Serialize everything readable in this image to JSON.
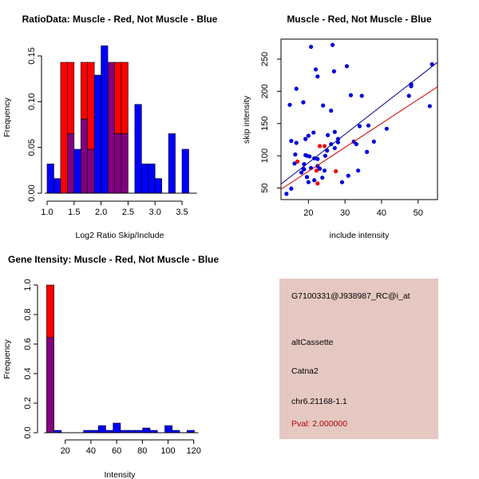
{
  "chart_data": [
    {
      "type": "bar",
      "subtype": "overlaid-histogram",
      "title": "RatioData: Muscle - Red, Not Muscle - Blue",
      "xlabel": "Log2 Ratio Skip/Include",
      "ylabel": "Frequency",
      "xlim": [
        1.0,
        3.7
      ],
      "ylim": [
        0,
        0.16
      ],
      "xticks": [
        "1.0",
        "1.5",
        "2.0",
        "2.5",
        "3.0",
        "3.5"
      ],
      "yticks": [
        "0.00",
        "0.05",
        "0.10",
        "0.15"
      ],
      "bin_start": 1.0,
      "bin_width": 0.125,
      "series": [
        {
          "name": "Muscle",
          "color": "#ff0000",
          "values": [
            0,
            0,
            0.143,
            0.143,
            0,
            0.143,
            0.143,
            0,
            0,
            0.143,
            0.143,
            0.143,
            0,
            0,
            0,
            0,
            0,
            0,
            0,
            0,
            0,
            0
          ]
        },
        {
          "name": "Not Muscle",
          "color": "#0000ff",
          "values": [
            0.032,
            0.016,
            0,
            0.065,
            0.048,
            0.081,
            0.048,
            0.129,
            0.161,
            0.143,
            0.065,
            0.065,
            0,
            0.097,
            0.032,
            0.032,
            0.016,
            0,
            0.065,
            0,
            0.048,
            0
          ]
        }
      ],
      "overlap_color": "#800080"
    },
    {
      "type": "scatter",
      "title": "Muscle - Red, Not Muscle - Blue",
      "xlabel": "include intensity",
      "ylabel": "skip intensity",
      "xlim": [
        12.5,
        55.3
      ],
      "ylim": [
        32,
        281
      ],
      "xticks": [
        "20",
        "30",
        "40",
        "50"
      ],
      "yticks": [
        "50",
        "100",
        "150",
        "200",
        "250"
      ],
      "series": [
        {
          "name": "Not Muscle",
          "color": "#0000dd",
          "points": [
            [
              14,
              41
            ],
            [
              15.3,
              49
            ],
            [
              14.9,
              179
            ],
            [
              15.3,
              123
            ],
            [
              16.2,
              88
            ],
            [
              16.4,
              102
            ],
            [
              16.7,
              120
            ],
            [
              16.7,
              204
            ],
            [
              18.6,
              183
            ],
            [
              18.1,
              74
            ],
            [
              18.6,
              80
            ],
            [
              18.8,
              79
            ],
            [
              18.8,
              87
            ],
            [
              19.2,
              126
            ],
            [
              19.2,
              101
            ],
            [
              19.6,
              100
            ],
            [
              19.6,
              67
            ],
            [
              20,
              131
            ],
            [
              20,
              59
            ],
            [
              20.3,
              99
            ],
            [
              20.7,
              269
            ],
            [
              20.7,
              81
            ],
            [
              21.4,
              136
            ],
            [
              21.6,
              62
            ],
            [
              21.6,
              96
            ],
            [
              22,
              234
            ],
            [
              22.5,
              223
            ],
            [
              22.5,
              95
            ],
            [
              22.5,
              84
            ],
            [
              23.1,
              80
            ],
            [
              23.8,
              66
            ],
            [
              24,
              178
            ],
            [
              24.4,
              77
            ],
            [
              24.6,
              100
            ],
            [
              25.1,
              108
            ],
            [
              25.3,
              132
            ],
            [
              26.2,
              118
            ],
            [
              26.2,
              170
            ],
            [
              26.6,
              272
            ],
            [
              27,
              231
            ],
            [
              27.2,
              112
            ],
            [
              27.2,
              137
            ],
            [
              28.1,
              121
            ],
            [
              28.1,
              126
            ],
            [
              29.2,
              59
            ],
            [
              30.5,
              239
            ],
            [
              30.9,
              69
            ],
            [
              31.6,
              194
            ],
            [
              32.4,
              122
            ],
            [
              33.1,
              118
            ],
            [
              33.6,
              77
            ],
            [
              34,
              146
            ],
            [
              34.6,
              193
            ],
            [
              36,
              106
            ],
            [
              36.4,
              147
            ],
            [
              37.9,
              122
            ],
            [
              41.4,
              142
            ],
            [
              47.5,
              193
            ],
            [
              48.1,
              208
            ],
            [
              48.1,
              211
            ],
            [
              53.2,
              177
            ],
            [
              53.8,
              242
            ]
          ],
          "fit": [
            [
              12.5,
              56
            ],
            [
              55.3,
              245
            ]
          ]
        },
        {
          "name": "Muscle",
          "color": "#ee0000",
          "points": [
            [
              17,
              91
            ],
            [
              23.1,
              115
            ],
            [
              24.4,
              115
            ],
            [
              22.2,
              77
            ],
            [
              22.5,
              57
            ],
            [
              27.5,
              76
            ]
          ],
          "fit": [
            [
              12.5,
              48
            ],
            [
              55.3,
              207
            ]
          ],
          "fit_color": "#cc0000"
        }
      ],
      "fit_colors": [
        "#00008b",
        "#cc0000"
      ]
    },
    {
      "type": "bar",
      "subtype": "overlaid-histogram",
      "title": "Gene Itensity: Muscle - Red, Not Muscle - Blue",
      "xlabel": "Intensity",
      "ylabel": "Frequency",
      "xlim": [
        5.5,
        120.5
      ],
      "ylim": [
        0,
        1.0
      ],
      "xticks": [
        "20",
        "40",
        "60",
        "80",
        "100",
        "120"
      ],
      "yticks": [
        "0.0",
        "0.2",
        "0.4",
        "0.6",
        "0.8",
        "1.0"
      ],
      "bin_start": 5.5,
      "bin_width": 5.75,
      "series": [
        {
          "name": "Muscle",
          "color": "#ff0000",
          "values": [
            1.0,
            0,
            0,
            0,
            0,
            0,
            0,
            0,
            0,
            0,
            0,
            0,
            0,
            0,
            0,
            0,
            0,
            0,
            0,
            0
          ]
        },
        {
          "name": "Not Muscle",
          "color": "#0000ff",
          "values": [
            0.645,
            0.016,
            0,
            0,
            0,
            0.016,
            0.016,
            0.048,
            0.016,
            0.065,
            0.016,
            0.016,
            0.016,
            0.032,
            0.016,
            0,
            0.048,
            0.016,
            0,
            0.016
          ]
        }
      ],
      "overlap_color": "#800080"
    }
  ],
  "info_panel": {
    "probe_id": "G7100331@J938987_RC@i_at",
    "event_type": "altCassette",
    "gene": "Catna2",
    "location": "chr6.21168-1.1",
    "pval": "Pval: 2.000000",
    "background": "#e6c8c2"
  }
}
